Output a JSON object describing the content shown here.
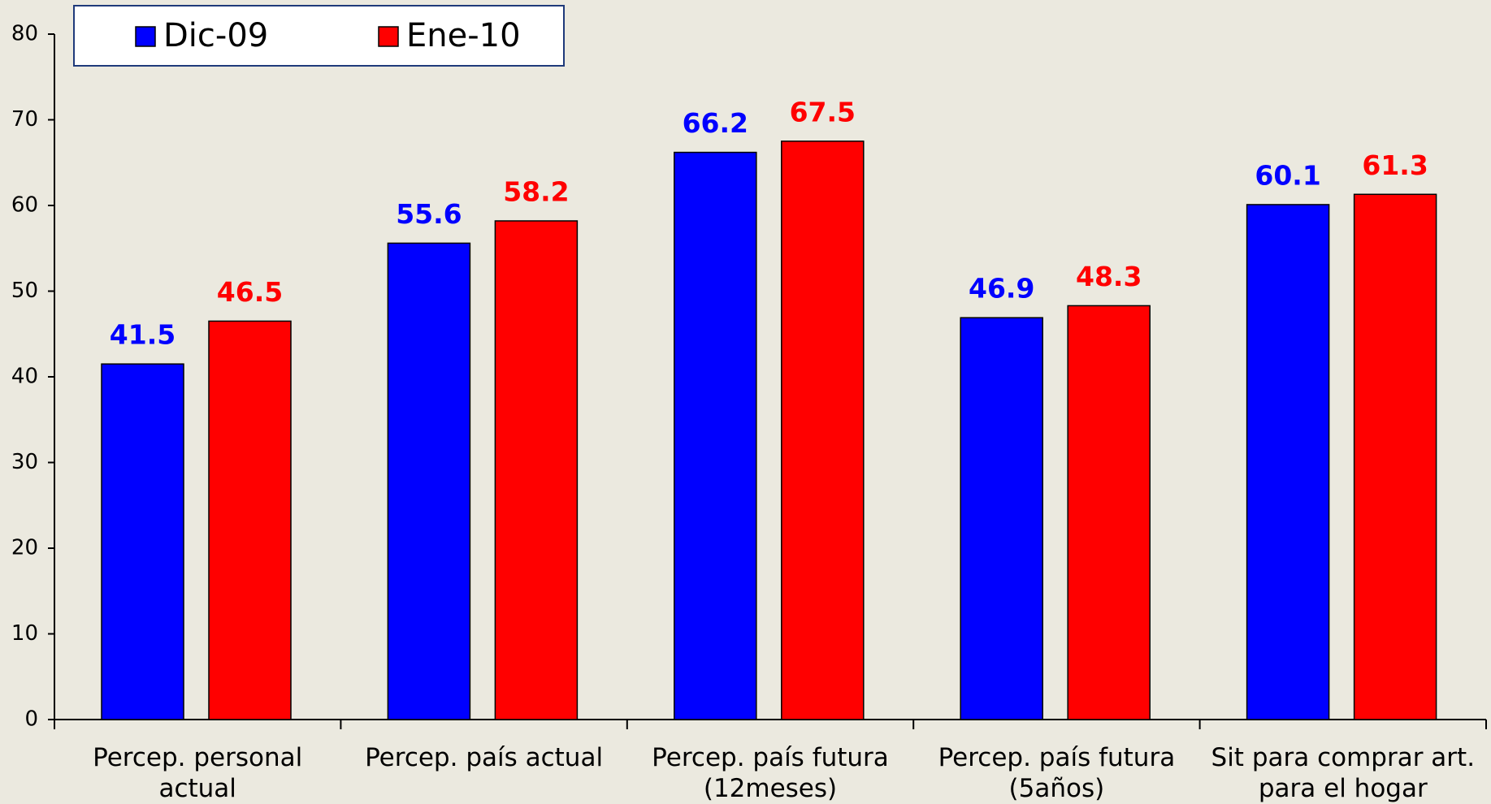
{
  "chart_data": {
    "type": "bar",
    "categories": [
      "Percep. personal actual",
      "Percep. país actual",
      "Percep. país futura\n(12meses)",
      "Percep. país futura\n(5años)",
      "Sit para comprar art.\npara el hogar"
    ],
    "series": [
      {
        "name": "Dic-09",
        "color": "#0000ff",
        "values": [
          41.5,
          55.6,
          66.2,
          46.9,
          60.1
        ]
      },
      {
        "name": "Ene-10",
        "color": "#ff0000",
        "values": [
          46.5,
          58.2,
          67.5,
          48.3,
          61.3
        ]
      }
    ],
    "ylim": [
      0,
      80
    ],
    "yticks": [
      0,
      10,
      20,
      30,
      40,
      50,
      60,
      70,
      80
    ],
    "legend": "top-left"
  }
}
